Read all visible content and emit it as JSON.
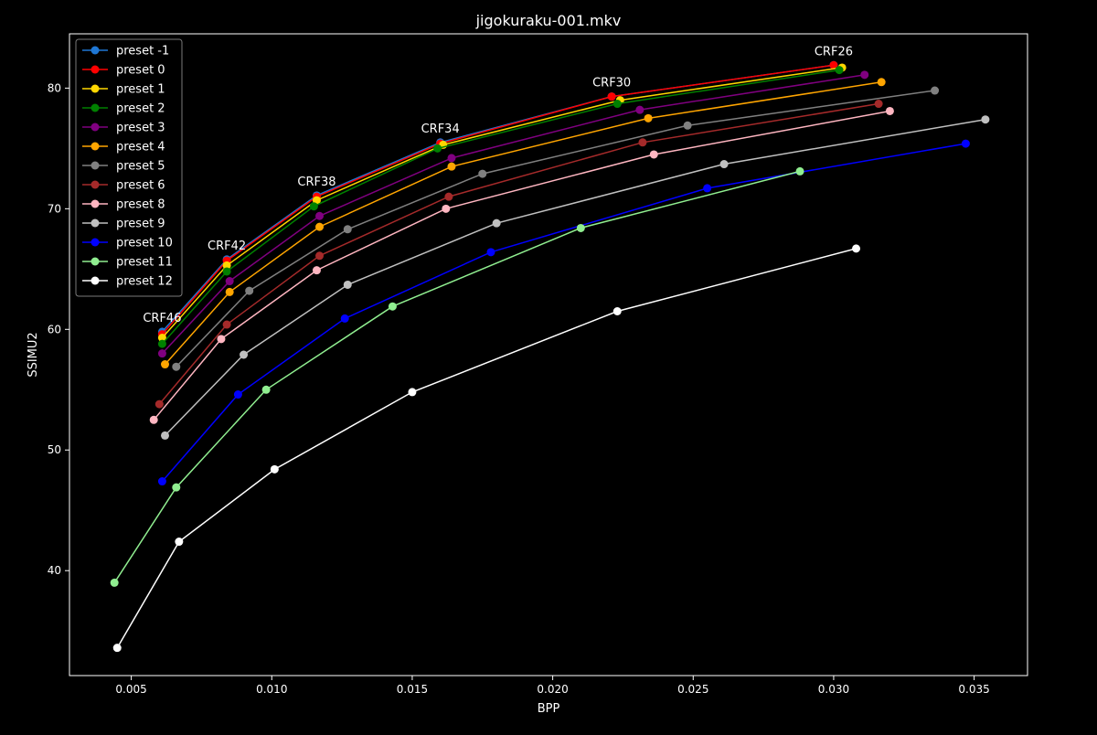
{
  "chart_data": {
    "type": "line",
    "title": "jigokuraku-001.mkv",
    "xlabel": "BPP",
    "ylabel": "SSIMU2",
    "xlim": [
      0.0028,
      0.0369
    ],
    "ylim": [
      31.3,
      84.5
    ],
    "x_ticks": [
      0.005,
      0.01,
      0.015,
      0.02,
      0.025,
      0.03,
      0.035
    ],
    "x_tick_labels": [
      "0.005",
      "0.010",
      "0.015",
      "0.020",
      "0.025",
      "0.030",
      "0.035"
    ],
    "y_ticks": [
      40,
      50,
      60,
      70,
      80
    ],
    "y_tick_labels": [
      "40",
      "50",
      "60",
      "70",
      "80"
    ],
    "grid": false,
    "legend_position": "top-left",
    "background": "#000000",
    "foreground": "#ffffff",
    "annotations": [
      {
        "text": "CRF46",
        "x": 0.0061,
        "y": 59.8
      },
      {
        "text": "CRF42",
        "x": 0.0084,
        "y": 65.8
      },
      {
        "text": "CRF38",
        "x": 0.0116,
        "y": 71.1
      },
      {
        "text": "CRF34",
        "x": 0.016,
        "y": 75.5
      },
      {
        "text": "CRF30",
        "x": 0.0221,
        "y": 79.3
      },
      {
        "text": "CRF26",
        "x": 0.03,
        "y": 81.9
      }
    ],
    "series": [
      {
        "name": "preset -1",
        "color": "#1f77d4",
        "x": [
          0.0061,
          0.0084,
          0.0116,
          0.016,
          0.0221,
          0.03
        ],
        "y": [
          59.8,
          65.8,
          71.1,
          75.5,
          79.3,
          81.9
        ]
      },
      {
        "name": "preset 0",
        "color": "#ff0000",
        "x": [
          0.0061,
          0.0084,
          0.0116,
          0.016,
          0.0221,
          0.03
        ],
        "y": [
          59.6,
          65.7,
          71.0,
          75.4,
          79.3,
          81.9
        ]
      },
      {
        "name": "preset 1",
        "color": "#ffd700",
        "x": [
          0.0061,
          0.0084,
          0.0116,
          0.0161,
          0.0224,
          0.0303
        ],
        "y": [
          59.3,
          65.3,
          70.7,
          75.3,
          79.0,
          81.7
        ]
      },
      {
        "name": "preset 2",
        "color": "#008000",
        "x": [
          0.0061,
          0.0084,
          0.0115,
          0.0159,
          0.0223,
          0.0302
        ],
        "y": [
          58.8,
          64.8,
          70.2,
          75.0,
          78.7,
          81.5
        ]
      },
      {
        "name": "preset 3",
        "color": "#800080",
        "x": [
          0.0061,
          0.0085,
          0.0117,
          0.0164,
          0.0231,
          0.0311
        ],
        "y": [
          58.0,
          64.0,
          69.4,
          74.2,
          78.2,
          81.1
        ]
      },
      {
        "name": "preset 4",
        "color": "#ffa500",
        "x": [
          0.0062,
          0.0085,
          0.0117,
          0.0164,
          0.0234,
          0.0317
        ],
        "y": [
          57.1,
          63.1,
          68.5,
          73.5,
          77.5,
          80.5
        ]
      },
      {
        "name": "preset 5",
        "color": "#808080",
        "x": [
          0.0066,
          0.0092,
          0.0127,
          0.0175,
          0.0248,
          0.0336
        ],
        "y": [
          56.9,
          63.2,
          68.3,
          72.9,
          76.9,
          79.8
        ]
      },
      {
        "name": "preset 6",
        "color": "#a52a2a",
        "x": [
          0.006,
          0.0084,
          0.0117,
          0.0163,
          0.0232,
          0.0316
        ],
        "y": [
          53.8,
          60.4,
          66.1,
          71.0,
          75.5,
          78.7
        ]
      },
      {
        "name": "preset 8",
        "color": "#ffb6c1",
        "x": [
          0.0058,
          0.0082,
          0.0116,
          0.0162,
          0.0236,
          0.032
        ],
        "y": [
          52.5,
          59.2,
          64.9,
          70.0,
          74.5,
          78.1
        ]
      },
      {
        "name": "preset 9",
        "color": "#c0c0c0",
        "x": [
          0.0062,
          0.009,
          0.0127,
          0.018,
          0.0261,
          0.0354
        ],
        "y": [
          51.2,
          57.9,
          63.7,
          68.8,
          73.7,
          77.4
        ]
      },
      {
        "name": "preset 10",
        "color": "#0000ff",
        "x": [
          0.0061,
          0.0088,
          0.0126,
          0.0178,
          0.0255,
          0.0347
        ],
        "y": [
          47.4,
          54.6,
          60.9,
          66.4,
          71.7,
          75.4
        ]
      },
      {
        "name": "preset 11",
        "color": "#90ee90",
        "x": [
          0.0044,
          0.0066,
          0.0098,
          0.0143,
          0.021,
          0.0288
        ],
        "y": [
          39.0,
          46.9,
          55.0,
          61.9,
          68.4,
          73.1
        ]
      },
      {
        "name": "preset 12",
        "color": "#ffffff",
        "x": [
          0.0045,
          0.0067,
          0.0101,
          0.015,
          0.0223,
          0.0308
        ],
        "y": [
          33.6,
          42.4,
          48.4,
          54.8,
          61.5,
          66.7
        ]
      }
    ]
  }
}
